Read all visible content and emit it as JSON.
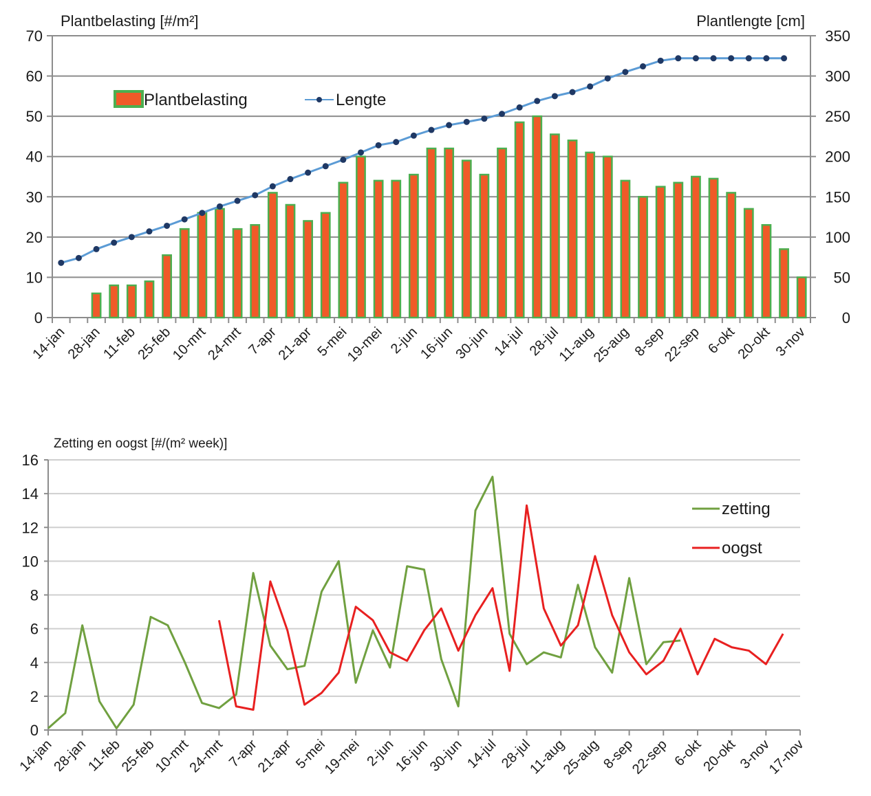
{
  "chart_data": [
    {
      "type": "bar",
      "title_left": "Plantbelasting  [#/m²]",
      "title_right": "Plantlengte  [cm]",
      "ylim_left": [
        0,
        70
      ],
      "yticks_left": [
        "0",
        "10",
        "20",
        "30",
        "40",
        "50",
        "60",
        "70"
      ],
      "ylim_right": [
        0,
        350
      ],
      "yticks_right": [
        "0",
        "50",
        "100",
        "150",
        "200",
        "250",
        "300",
        "350"
      ],
      "grid": true,
      "legend_position": "top-left",
      "xtick_labels": [
        "14-jan",
        "28-jan",
        "11-feb",
        "25-feb",
        "10-mrt",
        "24-mrt",
        "7-apr",
        "21-apr",
        "5-mei",
        "19-mei",
        "2-jun",
        "16-jun",
        "30-jun",
        "14-jul",
        "28-jul",
        "11-aug",
        "25-aug",
        "8-sep",
        "22-sep",
        "6-okt",
        "20-okt",
        "3-nov"
      ],
      "series": [
        {
          "name": "Plantbelasting",
          "type": "bar",
          "axis": "left",
          "values": [
            null,
            null,
            6,
            8,
            8,
            9,
            15.5,
            22,
            26,
            27,
            22,
            23,
            31,
            28,
            24,
            26,
            33.5,
            40,
            34,
            34,
            35.5,
            42,
            42,
            39,
            35.5,
            42,
            48.5,
            50,
            45.5,
            44,
            41,
            40,
            34,
            30,
            32.5,
            33.5,
            35,
            34.5,
            31,
            27,
            23,
            17,
            10
          ]
        },
        {
          "name": "Lengte",
          "type": "line",
          "axis": "right",
          "values": [
            68,
            74,
            85,
            93,
            100,
            107,
            114,
            122,
            130,
            138,
            145,
            152,
            163,
            172,
            180,
            188,
            196,
            205,
            214,
            218,
            226,
            233,
            239,
            243,
            247,
            253,
            261,
            269,
            275,
            280,
            287,
            297,
            305,
            312,
            319,
            322,
            322,
            322,
            322,
            322,
            322,
            322
          ]
        }
      ],
      "colors": {
        "bar_fill": "#f05a28",
        "bar_edge": "#4caf50",
        "line": "#5b9bd5",
        "marker": "#1f3864"
      }
    },
    {
      "type": "line",
      "title": "Zetting en oogst [#/(m² week)]",
      "ylim": [
        0,
        16
      ],
      "yticks": [
        "0",
        "2",
        "4",
        "6",
        "8",
        "10",
        "12",
        "14",
        "16"
      ],
      "grid": true,
      "legend_position": "top-right",
      "xtick_labels": [
        "14-jan",
        "28-jan",
        "11-feb",
        "25-feb",
        "10-mrt",
        "24-mrt",
        "7-apr",
        "21-apr",
        "5-mei",
        "19-mei",
        "2-jun",
        "16-jun",
        "30-jun",
        "14-jul",
        "28-jul",
        "11-aug",
        "25-aug",
        "8-sep",
        "22-sep",
        "6-okt",
        "20-okt",
        "3-nov",
        "17-nov"
      ],
      "series": [
        {
          "name": "zetting",
          "color": "#70a040",
          "values": [
            0.1,
            1.0,
            6.2,
            1.7,
            0.1,
            1.5,
            6.7,
            6.2,
            4.0,
            1.6,
            1.3,
            2.1,
            9.3,
            5.0,
            3.6,
            3.8,
            8.2,
            10.0,
            2.8,
            5.9,
            3.7,
            9.7,
            9.5,
            4.2,
            1.4,
            13.0,
            15.0,
            5.7,
            3.9,
            4.6,
            4.3,
            8.6,
            4.9,
            3.4,
            9.0,
            3.9,
            5.2,
            5.3
          ]
        },
        {
          "name": "oogst",
          "color": "#e82020",
          "values": [
            null,
            null,
            null,
            null,
            null,
            null,
            null,
            null,
            null,
            null,
            6.5,
            1.4,
            1.2,
            8.8,
            5.9,
            1.5,
            2.2,
            3.4,
            7.3,
            6.5,
            4.6,
            4.1,
            5.9,
            7.2,
            4.7,
            6.8,
            8.4,
            3.5,
            13.3,
            7.2,
            5.0,
            6.2,
            10.3,
            6.8,
            4.6,
            3.3,
            4.1,
            6.0,
            3.3,
            5.4,
            4.9,
            4.7,
            3.9,
            5.7
          ]
        }
      ]
    }
  ]
}
